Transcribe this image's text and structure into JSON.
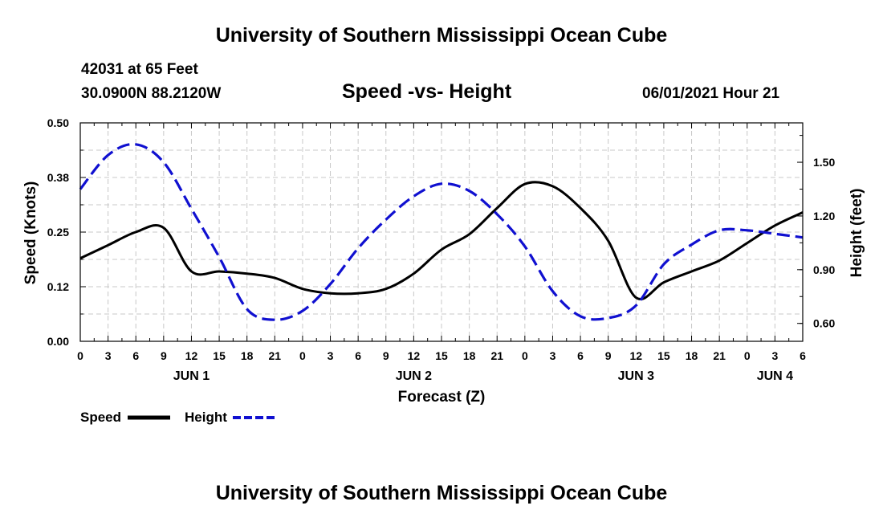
{
  "header": {
    "title": "University of Southern Mississippi Ocean Cube",
    "station": "42031 at 65 Feet",
    "coords": "30.0900N  88.2120W",
    "subtitle": "Speed -vs- Height",
    "datetime": "06/01/2021 Hour 21"
  },
  "footer": {
    "title": "University of Southern Mississippi Ocean Cube"
  },
  "chart_data": {
    "type": "line",
    "title": "Speed -vs- Height",
    "xlabel": "Forecast (Z)",
    "ylabel": "Speed (Knots)",
    "y2label": "Height (feet)",
    "x_range": [
      0,
      78
    ],
    "ylim": [
      0,
      0.5
    ],
    "y2lim": [
      0.5,
      1.72
    ],
    "grid": true,
    "legend_position": "bottom-left",
    "x_ticks": [
      {
        "x": 0,
        "label": "0"
      },
      {
        "x": 3,
        "label": "3"
      },
      {
        "x": 6,
        "label": "6"
      },
      {
        "x": 9,
        "label": "9"
      },
      {
        "x": 12,
        "label": "12"
      },
      {
        "x": 15,
        "label": "15"
      },
      {
        "x": 18,
        "label": "18"
      },
      {
        "x": 21,
        "label": "21"
      },
      {
        "x": 24,
        "label": "0"
      },
      {
        "x": 27,
        "label": "3"
      },
      {
        "x": 30,
        "label": "6"
      },
      {
        "x": 33,
        "label": "9"
      },
      {
        "x": 36,
        "label": "12"
      },
      {
        "x": 39,
        "label": "15"
      },
      {
        "x": 42,
        "label": "18"
      },
      {
        "x": 45,
        "label": "21"
      },
      {
        "x": 48,
        "label": "0"
      },
      {
        "x": 51,
        "label": "3"
      },
      {
        "x": 54,
        "label": "6"
      },
      {
        "x": 57,
        "label": "9"
      },
      {
        "x": 60,
        "label": "12"
      },
      {
        "x": 63,
        "label": "15"
      },
      {
        "x": 66,
        "label": "18"
      },
      {
        "x": 69,
        "label": "21"
      },
      {
        "x": 72,
        "label": "0"
      },
      {
        "x": 75,
        "label": "3"
      },
      {
        "x": 78,
        "label": "6"
      }
    ],
    "day_labels": [
      {
        "x": 12,
        "label": "JUN 1"
      },
      {
        "x": 36,
        "label": "JUN 2"
      },
      {
        "x": 60,
        "label": "JUN 3"
      },
      {
        "x": 75,
        "label": "JUN 4"
      }
    ],
    "y_ticks": [
      {
        "value": 0.0,
        "label": "0.00"
      },
      {
        "value": 0.125,
        "label": "0.12"
      },
      {
        "value": 0.25,
        "label": "0.25"
      },
      {
        "value": 0.375,
        "label": "0.38"
      },
      {
        "value": 0.5,
        "label": "0.50"
      }
    ],
    "y2_ticks": [
      {
        "value": 0.6,
        "label": "0.60"
      },
      {
        "value": 0.9,
        "label": "0.90"
      },
      {
        "value": 1.2,
        "label": "1.20"
      },
      {
        "value": 1.5,
        "label": "1.50"
      }
    ],
    "series": [
      {
        "name": "Speed",
        "axis": "left",
        "color": "#000000",
        "dash": "solid",
        "x": [
          0,
          3,
          6,
          9,
          12,
          15,
          18,
          21,
          24,
          27,
          30,
          33,
          36,
          39,
          42,
          45,
          48,
          51,
          54,
          57,
          60,
          63,
          66,
          69,
          72,
          75,
          78
        ],
        "values": [
          0.19,
          0.22,
          0.25,
          0.26,
          0.16,
          0.16,
          0.155,
          0.145,
          0.12,
          0.11,
          0.11,
          0.12,
          0.155,
          0.21,
          0.245,
          0.305,
          0.36,
          0.355,
          0.305,
          0.23,
          0.1,
          0.135,
          0.16,
          0.185,
          0.225,
          0.265,
          0.295
        ]
      },
      {
        "name": "Height",
        "axis": "right",
        "color": "#1010d0",
        "dash": "dashed",
        "x": [
          0,
          3,
          6,
          9,
          12,
          15,
          18,
          21,
          24,
          27,
          30,
          33,
          36,
          39,
          42,
          45,
          48,
          51,
          54,
          57,
          60,
          63,
          66,
          69,
          72,
          75,
          78
        ],
        "values": [
          1.35,
          1.54,
          1.6,
          1.5,
          1.24,
          0.97,
          0.68,
          0.62,
          0.67,
          0.82,
          1.02,
          1.18,
          1.31,
          1.38,
          1.34,
          1.21,
          1.03,
          0.78,
          0.64,
          0.63,
          0.7,
          0.93,
          1.04,
          1.12,
          1.12,
          1.1,
          1.08
        ]
      }
    ]
  }
}
